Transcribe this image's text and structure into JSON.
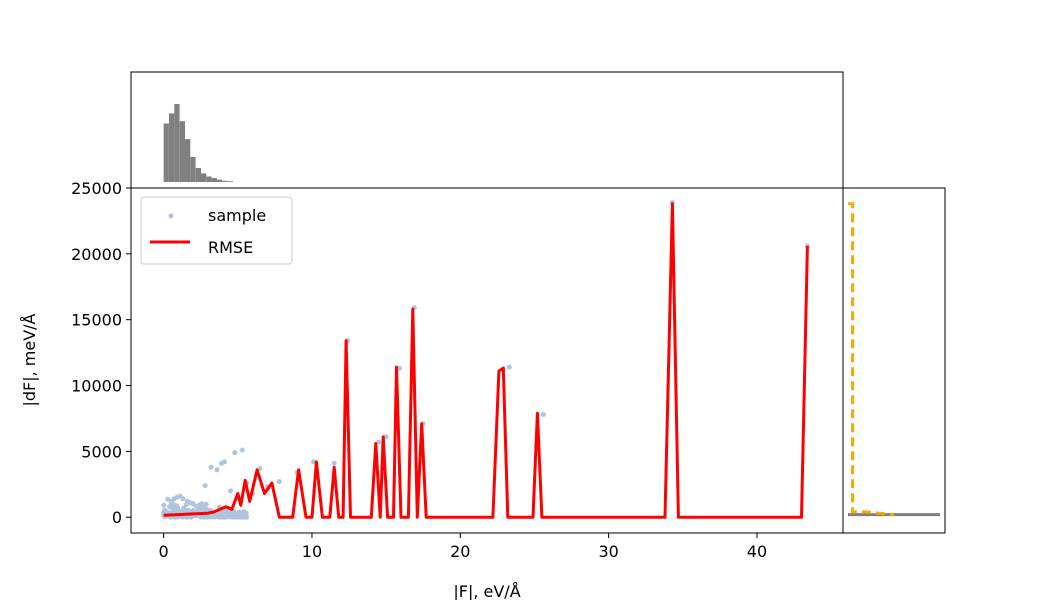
{
  "chart_data": {
    "type": "scatter",
    "xlabel": "|F|, eV/Å",
    "ylabel": "|dF|, meV/Å",
    "xlim": [
      -2.2,
      45.8
    ],
    "ylim": [
      -1200,
      25000
    ],
    "x_ticks": [
      0,
      10,
      20,
      30,
      40
    ],
    "y_ticks": [
      0,
      5000,
      10000,
      15000,
      20000,
      25000
    ],
    "grid": false,
    "legend": {
      "placement": "top-left",
      "entries": [
        "sample",
        "RMSE"
      ]
    },
    "colors": {
      "sample": "#b0c4de",
      "rmse": "#ff0000",
      "histogram": "#808080",
      "right_dashed": "#ffa500",
      "right_line": "#808080"
    },
    "series": [
      {
        "name": "sample",
        "type": "scatter",
        "points": [
          [
            0.2,
            400
          ],
          [
            0.4,
            800
          ],
          [
            0.5,
            1200
          ],
          [
            0.7,
            1400
          ],
          [
            0.9,
            1500
          ],
          [
            1.1,
            1600
          ],
          [
            1.3,
            1400
          ],
          [
            1.6,
            1200
          ],
          [
            2.0,
            1000
          ],
          [
            2.4,
            900
          ],
          [
            2.8,
            2400
          ],
          [
            3.2,
            3800
          ],
          [
            3.6,
            3600
          ],
          [
            3.9,
            4100
          ],
          [
            4.1,
            4200
          ],
          [
            4.5,
            2000
          ],
          [
            4.8,
            4900
          ],
          [
            5.3,
            5100
          ],
          [
            5.6,
            2600
          ],
          [
            6.0,
            1800
          ],
          [
            6.5,
            3700
          ],
          [
            7.0,
            2300
          ],
          [
            7.8,
            2700
          ],
          [
            9.0,
            3400
          ],
          [
            10.1,
            4200
          ],
          [
            11.5,
            4100
          ],
          [
            12.4,
            13400
          ],
          [
            14.5,
            5700
          ],
          [
            15.0,
            6100
          ],
          [
            15.9,
            11300
          ],
          [
            16.9,
            15900
          ],
          [
            17.5,
            7100
          ],
          [
            22.9,
            11300
          ],
          [
            23.3,
            11400
          ],
          [
            25.6,
            7800
          ],
          [
            34.3,
            23900
          ],
          [
            43.4,
            20600
          ]
        ]
      },
      {
        "name": "RMSE",
        "type": "line",
        "points": [
          [
            0.0,
            150
          ],
          [
            1.0,
            200
          ],
          [
            2.0,
            250
          ],
          [
            3.0,
            300
          ],
          [
            3.4,
            400
          ],
          [
            3.8,
            600
          ],
          [
            4.2,
            800
          ],
          [
            4.6,
            600
          ],
          [
            5.0,
            1800
          ],
          [
            5.2,
            900
          ],
          [
            5.5,
            2800
          ],
          [
            5.8,
            1200
          ],
          [
            6.3,
            3600
          ],
          [
            6.8,
            1800
          ],
          [
            7.3,
            2600
          ],
          [
            7.8,
            0
          ],
          [
            8.7,
            0
          ],
          [
            9.1,
            3600
          ],
          [
            9.6,
            0
          ],
          [
            10.0,
            0
          ],
          [
            10.3,
            4200
          ],
          [
            10.7,
            0
          ],
          [
            11.2,
            0
          ],
          [
            11.5,
            3800
          ],
          [
            11.8,
            0
          ],
          [
            12.1,
            0
          ],
          [
            12.3,
            13400
          ],
          [
            12.6,
            0
          ],
          [
            14.0,
            0
          ],
          [
            14.3,
            5600
          ],
          [
            14.6,
            0
          ],
          [
            14.8,
            6100
          ],
          [
            15.1,
            0
          ],
          [
            15.5,
            0
          ],
          [
            15.7,
            11400
          ],
          [
            16.0,
            0
          ],
          [
            16.5,
            0
          ],
          [
            16.8,
            15800
          ],
          [
            17.1,
            0
          ],
          [
            17.4,
            7100
          ],
          [
            17.7,
            0
          ],
          [
            22.2,
            0
          ],
          [
            22.6,
            11100
          ],
          [
            22.9,
            11300
          ],
          [
            23.2,
            0
          ],
          [
            24.9,
            0
          ],
          [
            25.2,
            7900
          ],
          [
            25.5,
            0
          ],
          [
            33.8,
            0
          ],
          [
            34.3,
            23800
          ],
          [
            34.7,
            0
          ],
          [
            43.0,
            0
          ],
          [
            43.4,
            20600
          ]
        ]
      }
    ],
    "top_histogram": {
      "bin_start": 0.0,
      "bin_width": 0.36,
      "counts": [
        0.75,
        0.88,
        1.0,
        0.78,
        0.55,
        0.32,
        0.18,
        0.11,
        0.07,
        0.05,
        0.03,
        0.015,
        0.01
      ]
    },
    "right_panel": {
      "solid_value": 200,
      "dashed_points": [
        [
          0.0,
          23800
        ],
        [
          0.05,
          23800
        ],
        [
          0.05,
          400
        ],
        [
          0.2,
          400
        ],
        [
          0.5,
          200
        ]
      ]
    }
  }
}
